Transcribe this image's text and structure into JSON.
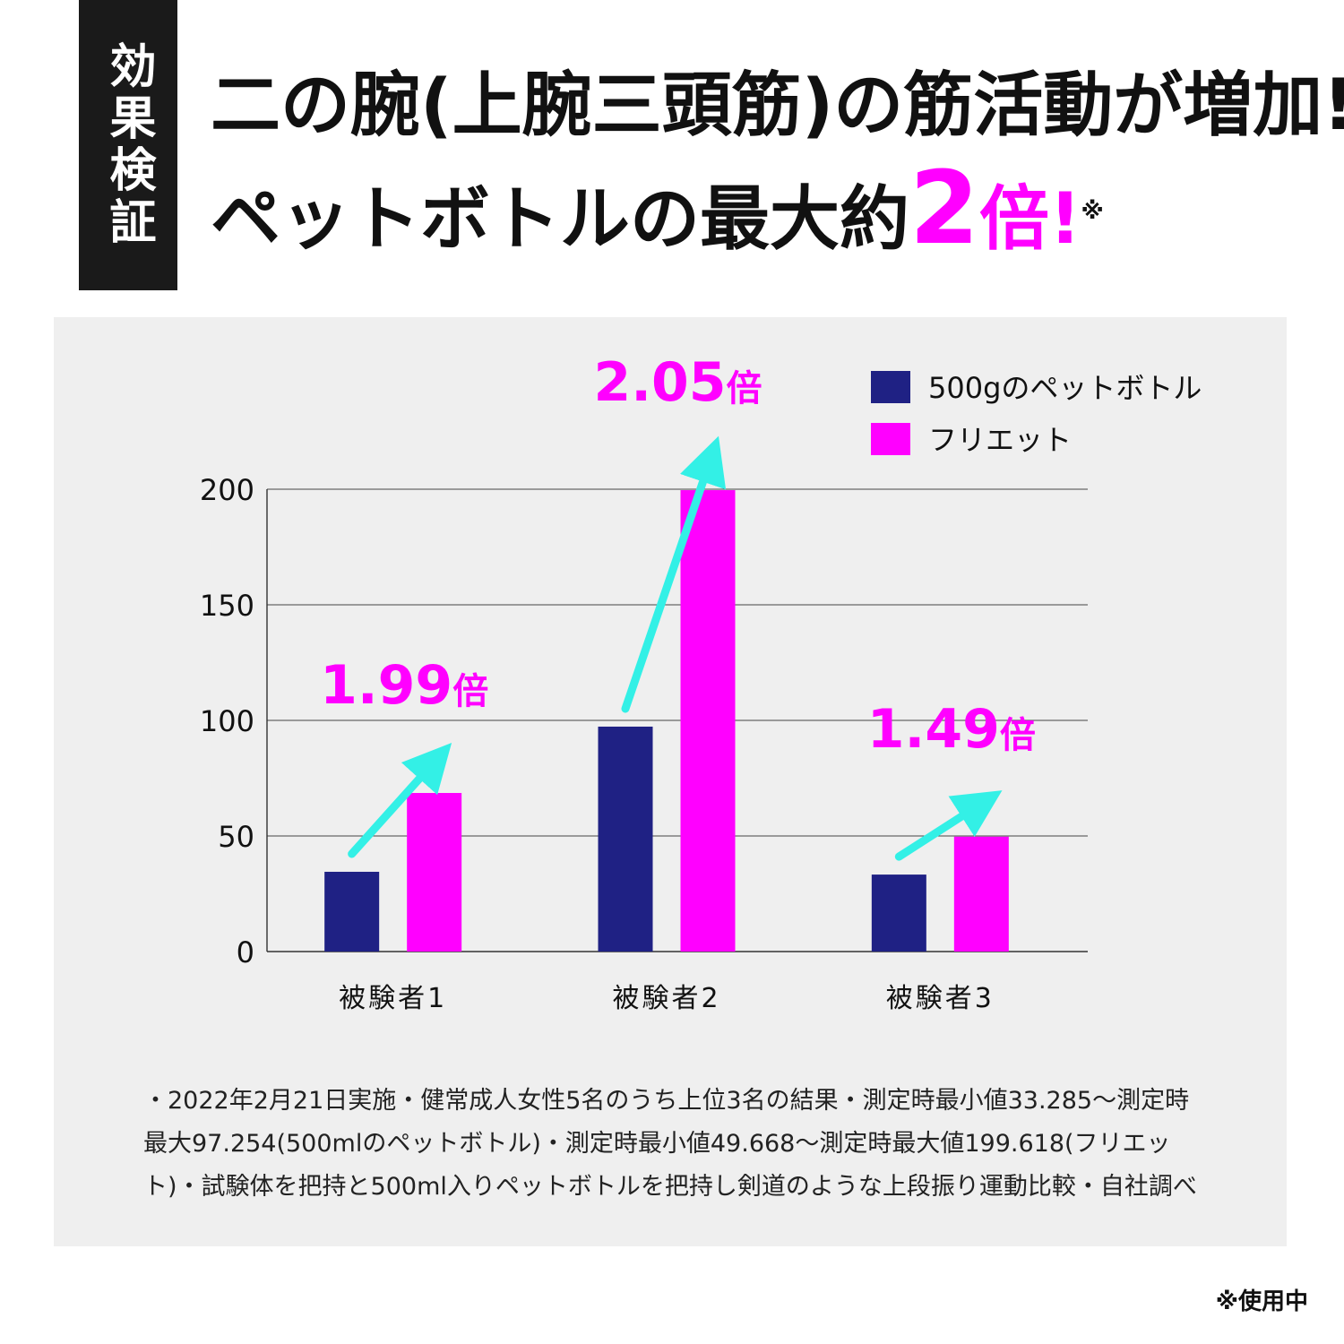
{
  "badge": {
    "label": "効果検証"
  },
  "headline": {
    "line1": "二の腕(上腕三頭筋)の筋活動が増加!",
    "line2_prefix": "ペットボトルの最大約",
    "line2_number": "2",
    "line2_suffix": "倍!",
    "line2_note_mark": "※"
  },
  "colors": {
    "series_bottle": "#1f2184",
    "series_furiet": "#ff00ff",
    "arrow": "#33f0e6",
    "accent": "#ff00ff",
    "panel_bg": "#efefef"
  },
  "chart_data": {
    "type": "bar",
    "categories": [
      "被験者1",
      "被験者2",
      "被験者3"
    ],
    "series": [
      {
        "name": "500gのペットボトル",
        "values": [
          34.5,
          97.3,
          33.3
        ]
      },
      {
        "name": "フリエット",
        "values": [
          68.6,
          199.6,
          49.7
        ]
      }
    ],
    "ylim": [
      0,
      200
    ],
    "yticks": [
      0,
      50,
      100,
      150,
      200
    ],
    "grid": true,
    "legend_position": "top-right",
    "ratio_labels": [
      {
        "category": "被験者1",
        "number": "1.99",
        "unit": "倍"
      },
      {
        "category": "被験者2",
        "number": "2.05",
        "unit": "倍"
      },
      {
        "category": "被験者3",
        "number": "1.49",
        "unit": "倍"
      }
    ]
  },
  "footnote": {
    "lines": [
      "・2022年2月21日実施・健常成人女性5名のうち上位3名の結果・測定時最小値33.285～測定時",
      "最大97.254(500mlのペットボトル)・測定時最小値49.668～測定時最大値199.618(フリエッ",
      "ト)・試験体を把持と500ml入りペットボトルを把持し剣道のような上段振り運動比較・自社調べ"
    ]
  },
  "usage_note": "※使用中"
}
